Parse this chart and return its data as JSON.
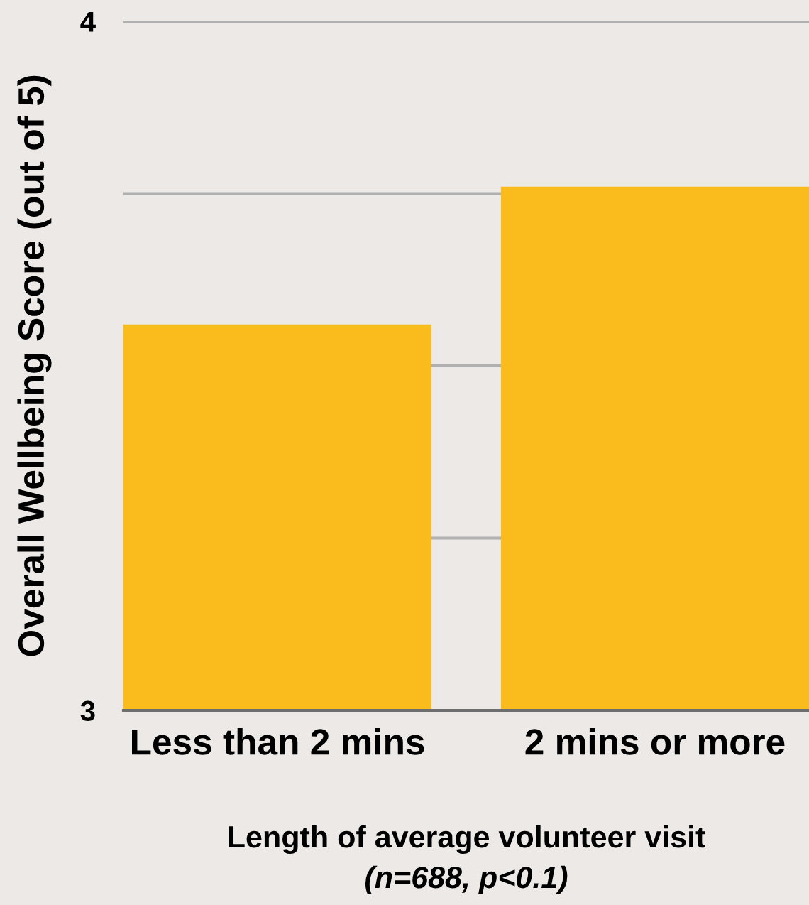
{
  "chart_data": {
    "type": "bar",
    "categories": [
      "Less than 2 mins",
      "2 mins or more"
    ],
    "values": [
      3.56,
      3.76
    ],
    "color": "#f9bc1c",
    "ylabel": "Overall Wellbeing Score (out of 5)",
    "xlabel": "Length of average volunteer visit",
    "annotations": [
      "(n=688, p<0.1)"
    ],
    "ylim": [
      3,
      4
    ],
    "yticks": [
      3,
      {
        "value": 3.25,
        "label": null
      },
      {
        "value": 3.5,
        "label": null
      },
      {
        "value": 3.75,
        "label": null
      },
      4
    ],
    "grid": "y",
    "legend": false
  }
}
